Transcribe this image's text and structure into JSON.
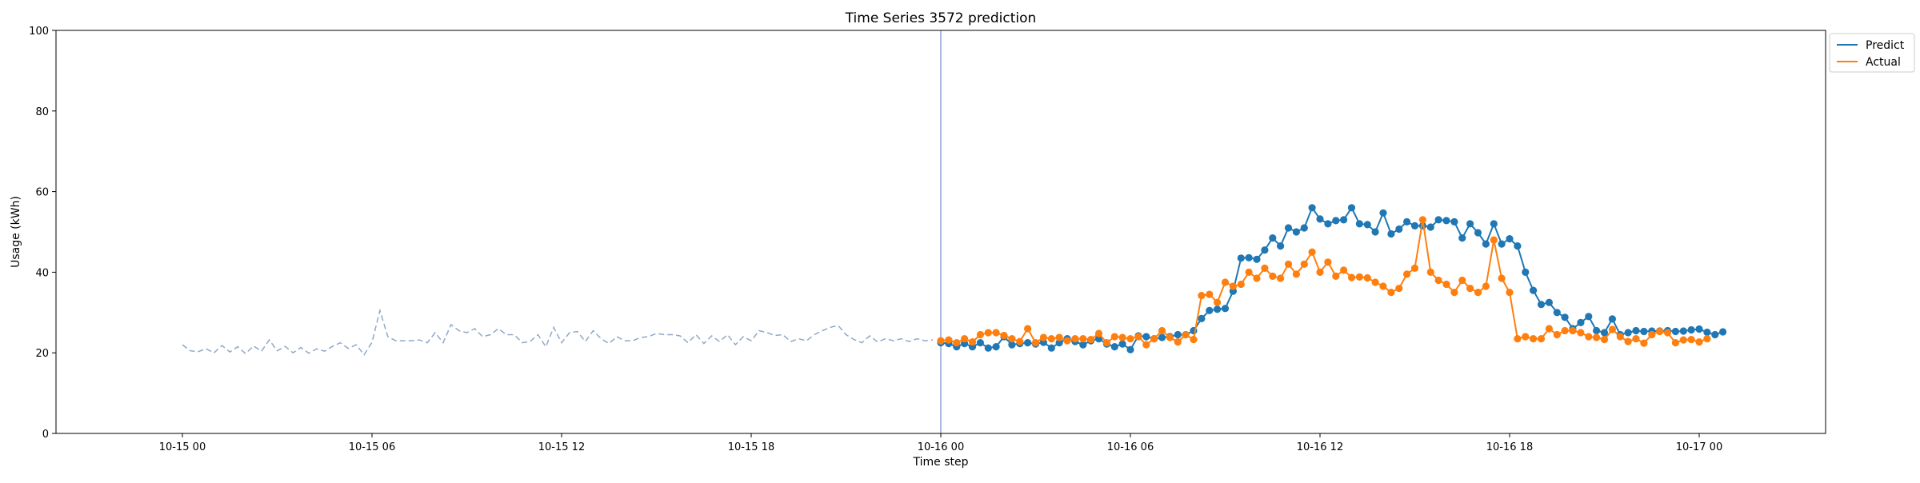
{
  "chart_data": {
    "type": "line",
    "title": "Time Series 3572 prediction",
    "xlabel": "Time step",
    "ylabel": "Usage (kWh)",
    "xlim": [
      "2023-10-14 20:00",
      "2023-10-17 04:00"
    ],
    "ylim": [
      0,
      100
    ],
    "x_ticks": [
      "10-15 00",
      "10-15 06",
      "10-15 12",
      "10-15 18",
      "10-16 00",
      "10-16 06",
      "10-16 12",
      "10-16 18",
      "10-17 00"
    ],
    "y_ticks": [
      "0",
      "20",
      "40",
      "60",
      "80",
      "100"
    ],
    "grid": false,
    "legend_position": "outside-top-right",
    "divider_x": "2023-10-16 00:00",
    "history": {
      "start": "2023-10-15 00:00",
      "step_minutes": 15,
      "style": "dashed",
      "color": "#8fa8c8",
      "values": [
        22.0,
        20.5,
        20.3,
        21.0,
        20.0,
        21.8,
        20.2,
        21.5,
        19.8,
        21.7,
        20.4,
        23.2,
        20.5,
        21.6,
        20.0,
        21.3,
        19.9,
        21.0,
        20.4,
        21.6,
        22.5,
        21.1,
        22.0,
        19.5,
        22.6,
        30.5,
        24.0,
        23.0,
        23.0,
        23.0,
        23.2,
        22.5,
        25.0,
        22.5,
        27.0,
        25.5,
        25.0,
        26.0,
        24.0,
        24.5,
        26.0,
        24.5,
        24.5,
        22.5,
        22.8,
        24.5,
        21.5,
        26.3,
        22.5,
        25.0,
        25.3,
        22.8,
        25.5,
        23.5,
        22.3,
        24.0,
        23.0,
        23.0,
        23.8,
        24.0,
        24.8,
        24.5,
        24.5,
        24.2,
        22.5,
        24.5,
        22.3,
        24.2,
        22.8,
        24.5,
        22.0,
        24.0,
        23.0,
        25.5,
        25.0,
        24.3,
        24.5,
        22.8,
        23.5,
        23.0,
        24.5,
        25.5,
        26.3,
        26.8,
        24.5,
        23.3,
        22.5,
        24.2,
        22.7,
        23.5,
        23.0,
        23.5,
        22.8,
        23.5,
        23.0,
        23.2
      ]
    },
    "forecast_x": {
      "start": "2023-10-16 00:00",
      "step_minutes": 15
    },
    "series": [
      {
        "name": "Predict",
        "color": "#1f77b4",
        "values": [
          22.5,
          22.3,
          21.5,
          22.3,
          21.5,
          22.5,
          21.2,
          21.5,
          24.0,
          22.0,
          22.3,
          22.5,
          22.2,
          22.6,
          21.2,
          22.5,
          23.5,
          22.8,
          22.0,
          23.0,
          23.5,
          22.2,
          21.5,
          22.2,
          20.8,
          24.2,
          24.0,
          23.5,
          23.8,
          24.0,
          24.5,
          24.5,
          25.5,
          28.5,
          30.5,
          30.8,
          31.0,
          35.3,
          43.5,
          43.6,
          43.2,
          45.5,
          48.5,
          46.5,
          51.0,
          50.0,
          51.0,
          56.0,
          53.2,
          52.0,
          52.8,
          53.0,
          56.0,
          52.0,
          51.8,
          50.0,
          54.7,
          49.5,
          50.7,
          52.5,
          51.5,
          51.5,
          51.2,
          53.0,
          52.8,
          52.5,
          48.5,
          52.0,
          49.8,
          47.0,
          52.0,
          47.0,
          48.3,
          46.5,
          40.0,
          35.5,
          32.0,
          32.5,
          30.0,
          28.8,
          26.0,
          27.5,
          29.0,
          25.5,
          25.0,
          28.4,
          24.5,
          25.0,
          25.5,
          25.3,
          25.4,
          25.4,
          25.5,
          25.3,
          25.4,
          25.7,
          25.9,
          25.1,
          24.5,
          25.2
        ]
      },
      {
        "name": "Actual",
        "color": "#ff7f0e",
        "values": [
          23.0,
          23.2,
          22.5,
          23.5,
          22.7,
          24.5,
          25.0,
          25.0,
          24.3,
          23.5,
          22.8,
          26.0,
          22.5,
          23.8,
          23.5,
          23.8,
          23.0,
          23.5,
          23.5,
          23.3,
          24.8,
          22.5,
          24.0,
          23.8,
          23.5,
          24.0,
          22.0,
          23.5,
          25.5,
          23.8,
          22.7,
          24.5,
          23.3,
          34.2,
          34.5,
          32.5,
          37.5,
          36.5,
          37.0,
          40.0,
          38.5,
          41.0,
          39.0,
          38.5,
          42.0,
          39.5,
          42.0,
          45.0,
          40.0,
          42.5,
          39.0,
          40.5,
          38.7,
          38.8,
          38.6,
          37.5,
          36.5,
          35.0,
          36.0,
          39.5,
          41.0,
          53.0,
          40.0,
          38.0,
          37.0,
          35.0,
          38.0,
          36.0,
          35.0,
          36.5,
          48.0,
          38.5,
          35.0,
          23.5,
          24.0,
          23.5,
          23.5,
          26.0,
          24.5,
          25.5,
          25.5,
          25.0,
          24.0,
          23.8,
          23.3,
          25.8,
          24.0,
          22.8,
          23.5,
          22.4,
          24.5,
          25.3,
          25.0,
          22.5,
          23.2,
          23.3,
          22.7,
          23.5
        ]
      }
    ]
  }
}
